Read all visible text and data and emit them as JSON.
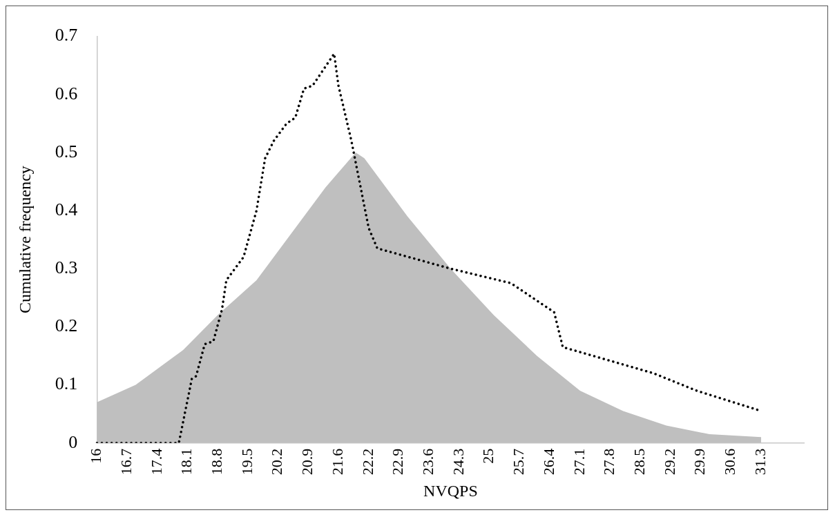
{
  "chart_data": {
    "type": "line",
    "xlabel": "NVQPS",
    "ylabel": "Cumulative frequency",
    "ylim": [
      0,
      0.7
    ],
    "yticks": [
      0,
      0.1,
      0.2,
      0.3,
      0.4,
      0.5,
      0.6,
      0.7
    ],
    "grid": false,
    "marker": "none",
    "categories": [
      "16",
      null,
      null,
      null,
      null,
      null,
      null,
      "16.7",
      null,
      null,
      null,
      null,
      null,
      null,
      "17.4",
      null,
      null,
      null,
      null,
      null,
      null,
      "18.1",
      null,
      null,
      null,
      null,
      null,
      null,
      "18.8",
      null,
      null,
      null,
      null,
      null,
      null,
      "19.5",
      null,
      null,
      null,
      null,
      null,
      null,
      "20.2",
      null,
      null,
      null,
      null,
      null,
      null,
      "20.9",
      null,
      null,
      null,
      null,
      null,
      null,
      "21.6",
      null,
      null,
      null,
      null,
      null,
      null,
      "22.2",
      null,
      null,
      null,
      null,
      null,
      null,
      "22.9",
      null,
      null,
      null,
      null,
      null,
      null,
      "23.6",
      null,
      null,
      null,
      null,
      null,
      null,
      "24.3",
      null,
      null,
      null,
      null,
      null,
      null,
      "25",
      null,
      null,
      null,
      null,
      null,
      null,
      "25.7",
      null,
      null,
      null,
      null,
      null,
      null,
      "26.4",
      null,
      null,
      null,
      null,
      null,
      null,
      "27.1",
      null,
      null,
      null,
      null,
      null,
      null,
      "27.8",
      null,
      null,
      null,
      null,
      null,
      null,
      "28.5",
      null,
      null,
      null,
      null,
      null,
      null,
      "29.2",
      null,
      null,
      null,
      null,
      null,
      null,
      "29.9",
      null,
      null,
      null,
      null,
      null,
      null,
      "30.6",
      null,
      null,
      null,
      null,
      null,
      null,
      "31.3",
      null,
      null,
      null,
      null,
      null,
      null,
      null,
      null,
      null,
      null
    ],
    "series": [
      {
        "type": "area",
        "color": "#bfbfbf",
        "values": [
          0.07,
          null,
          null,
          null,
          null,
          null,
          null,
          null,
          null,
          0.1,
          null,
          null,
          null,
          null,
          null,
          null,
          null,
          null,
          null,
          null,
          0.16,
          null,
          null,
          null,
          null,
          null,
          null,
          null,
          0.22,
          null,
          null,
          null,
          null,
          null,
          null,
          null,
          null,
          0.28,
          null,
          null,
          null,
          null,
          null,
          null,
          null,
          0.36,
          null,
          null,
          null,
          null,
          null,
          null,
          null,
          0.44,
          null,
          null,
          null,
          null,
          null,
          null,
          0.5,
          null,
          0.49,
          null,
          null,
          null,
          null,
          null,
          null,
          null,
          null,
          null,
          0.39,
          null,
          null,
          null,
          null,
          null,
          null,
          null,
          null,
          null,
          0.3,
          null,
          null,
          null,
          null,
          null,
          null,
          null,
          null,
          null,
          0.22,
          null,
          null,
          null,
          null,
          null,
          null,
          null,
          null,
          null,
          0.15,
          null,
          null,
          null,
          null,
          null,
          null,
          null,
          null,
          null,
          0.09,
          null,
          null,
          null,
          null,
          null,
          null,
          null,
          null,
          null,
          0.055,
          null,
          null,
          null,
          null,
          null,
          null,
          null,
          null,
          null,
          0.03,
          null,
          null,
          null,
          null,
          null,
          null,
          null,
          null,
          null,
          0.015,
          null,
          null,
          null,
          null,
          null,
          null,
          null,
          null,
          null,
          null,
          null,
          0.01,
          null,
          null,
          null,
          null,
          null,
          null,
          null,
          null,
          null,
          null
        ]
      },
      {
        "color": "#000000",
        "line_style": "dotted",
        "values": [
          0,
          null,
          null,
          null,
          null,
          null,
          null,
          null,
          null,
          null,
          null,
          null,
          null,
          null,
          null,
          null,
          null,
          null,
          null,
          0,
          null,
          null,
          0.11,
          0.115,
          null,
          0.17,
          null,
          0.175,
          null,
          0.23,
          0.28,
          null,
          null,
          null,
          0.32,
          null,
          null,
          0.4,
          null,
          0.49,
          null,
          0.52,
          null,
          null,
          0.55,
          null,
          0.56,
          null,
          0.61,
          null,
          0.615,
          null,
          null,
          null,
          null,
          0.67,
          0.615,
          null,
          null,
          0.52,
          null,
          null,
          null,
          0.37,
          null,
          0.335,
          null,
          null,
          null,
          null,
          null,
          null,
          null,
          null,
          null,
          null,
          null,
          null,
          null,
          null,
          null,
          null,
          0.3,
          null,
          null,
          null,
          null,
          null,
          null,
          null,
          null,
          null,
          null,
          null,
          null,
          null,
          0.275,
          null,
          null,
          null,
          null,
          null,
          null,
          null,
          null,
          null,
          0.225,
          null,
          0.165,
          null,
          null,
          null,
          null,
          null,
          null,
          null,
          null,
          null,
          null,
          null,
          null,
          null,
          null,
          null,
          null,
          null,
          null,
          null,
          null,
          0.12,
          null,
          null,
          null,
          null,
          null,
          null,
          null,
          null,
          null,
          0.09,
          null,
          null,
          null,
          null,
          null,
          null,
          null,
          null,
          null,
          null,
          null,
          null,
          null,
          null,
          0.055,
          null,
          null,
          null,
          null,
          null,
          null,
          null,
          null,
          null,
          null
        ]
      }
    ]
  }
}
